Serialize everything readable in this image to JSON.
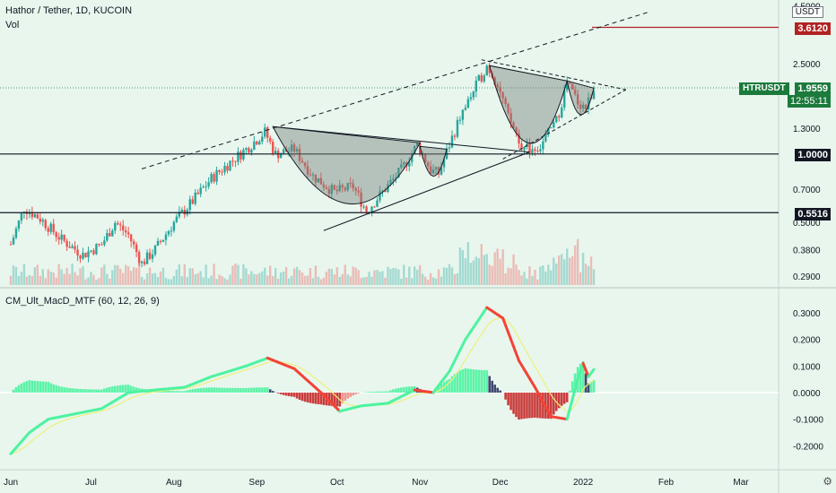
{
  "header": {
    "title": "Hathor / Tether, 1D, KUCOIN",
    "volume_label": "Vol",
    "currency": "USDT"
  },
  "indicator": {
    "name": "CM_Ult_MacD_MTF (60, 12, 26, 9)"
  },
  "price_tags": {
    "target": "3.6120",
    "symbol": "HTRUSDT",
    "last_price": "1.9559",
    "countdown": "12:55:11",
    "resistance": "1.0000",
    "support": "0.5516"
  },
  "colors": {
    "background": "#e8f6ee",
    "up_candle": "#26a69a",
    "down_candle": "#ef5350",
    "target_line": "#b22222",
    "last_price_tag": "#1b7a3c",
    "macd_green": "#4ef3a0",
    "macd_red": "#f44336",
    "signal_line": "#eef07a",
    "hist_dark": "#2a3560",
    "hist_red": "#c62828"
  },
  "chart_data": [
    {
      "type": "candlestick",
      "title": "Hathor / Tether, 1D, KUCOIN",
      "scale": "log",
      "y_ticks": [
        "0.2900",
        "0.3800",
        "0.5000",
        "0.7000",
        "1.3000",
        "2.5000",
        "4.5000"
      ],
      "x_ticks": [
        "Jun",
        "Jul",
        "Aug",
        "Sep",
        "Oct",
        "Nov",
        "Dec",
        "2022",
        "Feb",
        "Mar"
      ],
      "close_path": [
        [
          "2021-06-01",
          0.4
        ],
        [
          "2021-06-06",
          0.58
        ],
        [
          "2021-06-12",
          0.52
        ],
        [
          "2021-06-20",
          0.42
        ],
        [
          "2021-06-28",
          0.36
        ],
        [
          "2021-07-05",
          0.4
        ],
        [
          "2021-07-10",
          0.5
        ],
        [
          "2021-07-15",
          0.44
        ],
        [
          "2021-07-20",
          0.33
        ],
        [
          "2021-07-25",
          0.38
        ],
        [
          "2021-08-01",
          0.5
        ],
        [
          "2021-08-08",
          0.62
        ],
        [
          "2021-08-15",
          0.78
        ],
        [
          "2021-08-22",
          0.92
        ],
        [
          "2021-08-28",
          1.05
        ],
        [
          "2021-09-04",
          1.25
        ],
        [
          "2021-09-08",
          1.0
        ],
        [
          "2021-09-15",
          1.05
        ],
        [
          "2021-09-22",
          0.8
        ],
        [
          "2021-09-30",
          0.68
        ],
        [
          "2021-10-07",
          0.72
        ],
        [
          "2021-10-12",
          0.56
        ],
        [
          "2021-10-18",
          0.68
        ],
        [
          "2021-10-25",
          0.85
        ],
        [
          "2021-10-31",
          1.1
        ],
        [
          "2021-11-05",
          0.85
        ],
        [
          "2021-11-08",
          0.82
        ],
        [
          "2021-11-12",
          1.1
        ],
        [
          "2021-11-16",
          1.45
        ],
        [
          "2021-11-22",
          2.0
        ],
        [
          "2021-11-26",
          2.45
        ],
        [
          "2021-11-30",
          2.05
        ],
        [
          "2021-12-04",
          1.45
        ],
        [
          "2021-12-10",
          1.05
        ],
        [
          "2021-12-16",
          1.08
        ],
        [
          "2021-12-22",
          1.4
        ],
        [
          "2021-12-26",
          2.05
        ],
        [
          "2021-12-30",
          1.7
        ],
        [
          "2022-01-02",
          1.6
        ],
        [
          "2022-01-05",
          1.95
        ]
      ],
      "horizontal_levels": [
        {
          "label": "1.0000",
          "value": 1.0
        },
        {
          "label": "0.5516",
          "value": 0.5516
        },
        {
          "label": "3.6120",
          "value": 3.612
        }
      ],
      "last_value": 1.9559
    },
    {
      "type": "bar",
      "title": "Vol",
      "note": "volume histogram"
    },
    {
      "type": "line",
      "title": "CM_Ult_MacD_MTF (60, 12, 26, 9)",
      "y_ticks": [
        "0.3000",
        "0.2000",
        "0.1000",
        "0.0000",
        "-0.1000",
        "-0.2000"
      ],
      "ylim": [
        -0.24,
        0.33
      ],
      "macd_path": [
        [
          "2021-06-01",
          -0.23
        ],
        [
          "2021-06-08",
          -0.15
        ],
        [
          "2021-06-15",
          -0.1
        ],
        [
          "2021-06-25",
          -0.08
        ],
        [
          "2021-07-05",
          -0.06
        ],
        [
          "2021-07-15",
          0.0
        ],
        [
          "2021-07-25",
          0.01
        ],
        [
          "2021-08-05",
          0.02
        ],
        [
          "2021-08-15",
          0.06
        ],
        [
          "2021-08-28",
          0.1
        ],
        [
          "2021-09-05",
          0.13
        ],
        [
          "2021-09-15",
          0.09
        ],
        [
          "2021-09-25",
          0.0
        ],
        [
          "2021-10-02",
          -0.07
        ],
        [
          "2021-10-10",
          -0.05
        ],
        [
          "2021-10-20",
          -0.04
        ],
        [
          "2021-10-30",
          0.01
        ],
        [
          "2021-11-06",
          0.0
        ],
        [
          "2021-11-12",
          0.08
        ],
        [
          "2021-11-18",
          0.2
        ],
        [
          "2021-11-26",
          0.32
        ],
        [
          "2021-12-02",
          0.28
        ],
        [
          "2021-12-08",
          0.12
        ],
        [
          "2021-12-14",
          0.02
        ],
        [
          "2021-12-20",
          -0.09
        ],
        [
          "2021-12-26",
          -0.1
        ],
        [
          "2021-12-30",
          0.05
        ],
        [
          "2022-01-01",
          0.11
        ],
        [
          "2022-01-03",
          0.06
        ],
        [
          "2022-01-06",
          0.1
        ]
      ]
    }
  ]
}
